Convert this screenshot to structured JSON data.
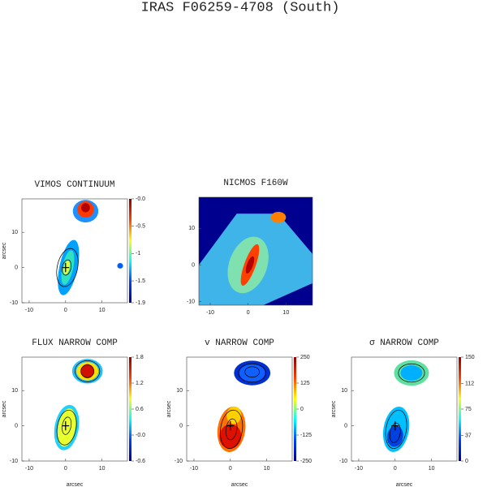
{
  "title": "IRAS F06259-4708 (South)",
  "chart_data": [
    {
      "type": "image",
      "title": "VIMOS CONTINUUM",
      "ylabel": "arcsec",
      "xlim": [
        -12,
        17
      ],
      "ylim": [
        -10,
        19.5
      ],
      "xticks": [
        -10,
        0,
        10
      ],
      "yticks": [
        -10,
        0,
        10
      ],
      "clim": [
        -1.9,
        0
      ],
      "cticks": [
        {
          "value": 0,
          "label": "-0.0"
        },
        -0.5,
        -1.0,
        -1.5,
        -1.9
      ]
    },
    {
      "type": "image",
      "title": "NICMOS F160W",
      "xlim": [
        -13,
        17
      ],
      "ylim": [
        -11,
        18.5
      ],
      "xticks": [
        -10,
        0,
        10
      ],
      "yticks": [
        -10,
        0,
        10
      ]
    },
    {
      "type": "image",
      "title": "FLUX NARROW COMP",
      "xlabel": "arcsec",
      "ylabel": "arcsec",
      "xlim": [
        -12,
        17
      ],
      "ylim": [
        -10,
        19.5
      ],
      "xticks": [
        -10,
        0,
        10
      ],
      "yticks": [
        -10,
        0,
        10
      ],
      "clim": [
        -0.6,
        1.8
      ],
      "cticks": [
        1.8,
        1.2,
        0.6,
        {
          "value": 0,
          "label": "-0.0"
        },
        -0.6
      ]
    },
    {
      "type": "image",
      "title": "v NARROW COMP",
      "xlabel": "arcsec",
      "ylabel": "arcsec",
      "xlim": [
        -12,
        17
      ],
      "ylim": [
        -10,
        19.5
      ],
      "xticks": [
        -10,
        0,
        10
      ],
      "yticks": [
        -10,
        0,
        10
      ],
      "clim": [
        -250,
        250
      ],
      "cticks": [
        250,
        125,
        0,
        -125,
        -250
      ]
    },
    {
      "type": "image",
      "title": "σ NARROW COMP",
      "xlabel": "arcsec",
      "ylabel": "arcsec",
      "xlim": [
        -12,
        17
      ],
      "ylim": [
        -10,
        19.5
      ],
      "xticks": [
        -10,
        0,
        10
      ],
      "yticks": [
        -10,
        0,
        10
      ],
      "clim": [
        0,
        150
      ],
      "cticks": [
        150,
        112,
        75,
        37,
        0
      ]
    }
  ]
}
